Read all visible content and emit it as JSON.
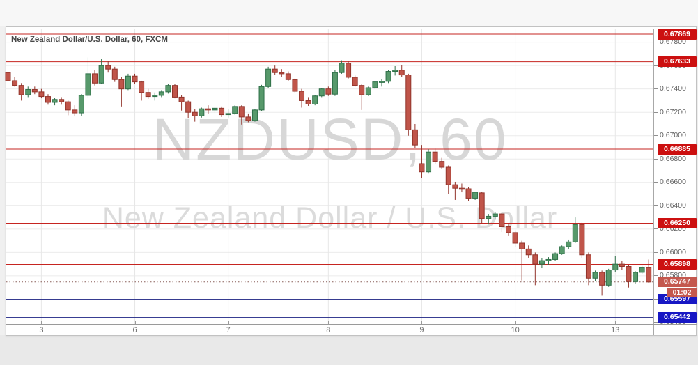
{
  "header": {
    "title": "New Zealand Dollar/U.S. Dollar, 60, FXCM"
  },
  "watermark": {
    "line1": "NZDUSD, 60",
    "line2": "New Zealand Dollar / U.S. Dollar"
  },
  "colors": {
    "up_fill": "#57996b",
    "up_border": "#2f7049",
    "down_fill": "#c0554a",
    "down_border": "#92342b",
    "grid": "#ebebeb",
    "grid_vertical": "#e7e7e7",
    "level_red": "#c62420",
    "level_navy": "#1c2283",
    "badge_red": "#cc1010",
    "badge_navy": "#1717c4",
    "badge_current": "#c4584e",
    "current_line": "#8a5f58",
    "axis_text": "#616161",
    "title_text": "#474747",
    "watermark_text": "#d7d7d7"
  },
  "chart_data": {
    "type": "candlestick",
    "symbol": "NZDUSD",
    "interval": "60",
    "exchange": "FXCM",
    "title": "New Zealand Dollar/U.S. Dollar, 60, FXCM",
    "grid": true,
    "y_range": {
      "top": 0.67917,
      "bottom": 0.65388
    },
    "y_ticks": [
      0.678,
      0.676,
      0.674,
      0.672,
      0.67,
      0.668,
      0.666,
      0.664,
      0.662,
      0.66,
      0.658,
      0.656,
      0.654
    ],
    "x_labels": [
      {
        "text": "3",
        "candle": 5
      },
      {
        "text": "6",
        "candle": 19
      },
      {
        "text": "7",
        "candle": 33
      },
      {
        "text": "8",
        "candle": 48
      },
      {
        "text": "9",
        "candle": 62
      },
      {
        "text": "10",
        "candle": 76
      },
      {
        "text": "13",
        "candle": 91
      }
    ],
    "horizontal_levels": [
      {
        "price": 0.67869,
        "color": "red",
        "label": "0.67869"
      },
      {
        "price": 0.67633,
        "color": "red",
        "label": "0.67633"
      },
      {
        "price": 0.66885,
        "color": "red",
        "label": "0.66885"
      },
      {
        "price": 0.6625,
        "color": "red",
        "label": "0.66250"
      },
      {
        "price": 0.65898,
        "color": "red",
        "label": "0.65898"
      },
      {
        "price": 0.65597,
        "color": "navy",
        "label": "0.65597"
      },
      {
        "price": 0.65442,
        "color": "navy",
        "label": "0.65442"
      }
    ],
    "last_price": {
      "value": 0.65747,
      "label": "0.65747",
      "countdown": "01:02"
    },
    "candles": [
      [
        0.6754,
        0.67585,
        0.6746,
        0.6747
      ],
      [
        0.6747,
        0.675,
        0.6742,
        0.6743
      ],
      [
        0.6743,
        0.6745,
        0.673,
        0.6735
      ],
      [
        0.6735,
        0.6742,
        0.6733,
        0.67395
      ],
      [
        0.67395,
        0.6742,
        0.67355,
        0.67375
      ],
      [
        0.67375,
        0.674,
        0.6732,
        0.67335
      ],
      [
        0.67335,
        0.67355,
        0.67265,
        0.67285
      ],
      [
        0.67285,
        0.67325,
        0.6726,
        0.6731
      ],
      [
        0.6731,
        0.6733,
        0.67265,
        0.6729
      ],
      [
        0.6729,
        0.673,
        0.67175,
        0.6722
      ],
      [
        0.6722,
        0.6726,
        0.67165,
        0.67195
      ],
      [
        0.67195,
        0.67355,
        0.6717,
        0.67345
      ],
      [
        0.67345,
        0.6767,
        0.67325,
        0.6753
      ],
      [
        0.6753,
        0.6756,
        0.6743,
        0.6745
      ],
      [
        0.6745,
        0.6766,
        0.6744,
        0.676
      ],
      [
        0.676,
        0.6764,
        0.6754,
        0.6757
      ],
      [
        0.6757,
        0.6759,
        0.6746,
        0.6748
      ],
      [
        0.6748,
        0.675,
        0.6725,
        0.674
      ],
      [
        0.674,
        0.6753,
        0.6739,
        0.6751
      ],
      [
        0.6751,
        0.6753,
        0.6744,
        0.6746
      ],
      [
        0.6746,
        0.6747,
        0.673,
        0.6737
      ],
      [
        0.6737,
        0.674,
        0.67315,
        0.67335
      ],
      [
        0.67335,
        0.6737,
        0.673,
        0.67345
      ],
      [
        0.67345,
        0.6739,
        0.6733,
        0.67375
      ],
      [
        0.67375,
        0.6744,
        0.6736,
        0.6743
      ],
      [
        0.6743,
        0.67445,
        0.6732,
        0.6733
      ],
      [
        0.6733,
        0.6735,
        0.67215,
        0.6729
      ],
      [
        0.6729,
        0.673,
        0.6715,
        0.672
      ],
      [
        0.672,
        0.6723,
        0.6712,
        0.6717
      ],
      [
        0.6717,
        0.6724,
        0.67155,
        0.6723
      ],
      [
        0.6723,
        0.6726,
        0.6719,
        0.6722
      ],
      [
        0.6722,
        0.6725,
        0.67195,
        0.67235
      ],
      [
        0.67235,
        0.6725,
        0.6716,
        0.6718
      ],
      [
        0.6718,
        0.67225,
        0.67155,
        0.6719
      ],
      [
        0.6719,
        0.6726,
        0.6718,
        0.6725
      ],
      [
        0.6725,
        0.6726,
        0.67095,
        0.6716
      ],
      [
        0.6716,
        0.6719,
        0.67115,
        0.6713
      ],
      [
        0.6713,
        0.6723,
        0.6712,
        0.6722
      ],
      [
        0.6722,
        0.67435,
        0.6721,
        0.6742
      ],
      [
        0.6742,
        0.6759,
        0.6741,
        0.6757
      ],
      [
        0.6757,
        0.676,
        0.6752,
        0.6754
      ],
      [
        0.6754,
        0.6757,
        0.675,
        0.6753
      ],
      [
        0.6753,
        0.6755,
        0.67465,
        0.6748
      ],
      [
        0.6748,
        0.6749,
        0.67365,
        0.6738
      ],
      [
        0.6738,
        0.674,
        0.6724,
        0.673
      ],
      [
        0.673,
        0.6733,
        0.67255,
        0.6727
      ],
      [
        0.6727,
        0.6735,
        0.6726,
        0.6734
      ],
      [
        0.6734,
        0.6741,
        0.6733,
        0.674
      ],
      [
        0.674,
        0.6742,
        0.6734,
        0.67355
      ],
      [
        0.67355,
        0.6756,
        0.6734,
        0.6754
      ],
      [
        0.6754,
        0.67645,
        0.6753,
        0.6762
      ],
      [
        0.6762,
        0.6764,
        0.6749,
        0.675
      ],
      [
        0.675,
        0.67515,
        0.6742,
        0.6743
      ],
      [
        0.6743,
        0.6744,
        0.6722,
        0.6735
      ],
      [
        0.6735,
        0.6742,
        0.6734,
        0.6741
      ],
      [
        0.6741,
        0.6747,
        0.674,
        0.6746
      ],
      [
        0.6746,
        0.67485,
        0.6742,
        0.67465
      ],
      [
        0.67465,
        0.6756,
        0.6745,
        0.6755
      ],
      [
        0.6755,
        0.67595,
        0.67515,
        0.6756
      ],
      [
        0.6756,
        0.67605,
        0.675,
        0.6752
      ],
      [
        0.6752,
        0.6753,
        0.67,
        0.6705
      ],
      [
        0.6705,
        0.671,
        0.66895,
        0.6692
      ],
      [
        0.6676,
        0.6692,
        0.6664,
        0.6669
      ],
      [
        0.6669,
        0.66885,
        0.66675,
        0.6686
      ],
      [
        0.6686,
        0.6689,
        0.66755,
        0.6678
      ],
      [
        0.6678,
        0.6681,
        0.66715,
        0.6673
      ],
      [
        0.6673,
        0.66745,
        0.665,
        0.6658
      ],
      [
        0.6658,
        0.66605,
        0.6645,
        0.6655
      ],
      [
        0.6655,
        0.6659,
        0.66515,
        0.66545
      ],
      [
        0.66545,
        0.6656,
        0.6644,
        0.66465
      ],
      [
        0.66465,
        0.6652,
        0.6645,
        0.66515
      ],
      [
        0.6651,
        0.6652,
        0.6625,
        0.6629
      ],
      [
        0.6629,
        0.6633,
        0.6624,
        0.6631
      ],
      [
        0.6631,
        0.66345,
        0.6628,
        0.6633
      ],
      [
        0.6633,
        0.6634,
        0.66175,
        0.6622
      ],
      [
        0.6622,
        0.6625,
        0.6614,
        0.6617
      ],
      [
        0.6617,
        0.6619,
        0.6605,
        0.6608
      ],
      [
        0.6608,
        0.661,
        0.6576,
        0.6603
      ],
      [
        0.6603,
        0.6606,
        0.65955,
        0.6598
      ],
      [
        0.6598,
        0.66,
        0.6572,
        0.659
      ],
      [
        0.659,
        0.6595,
        0.65865,
        0.6593
      ],
      [
        0.6593,
        0.6596,
        0.6589,
        0.6594
      ],
      [
        0.6594,
        0.66,
        0.65925,
        0.6599
      ],
      [
        0.6599,
        0.6606,
        0.6598,
        0.6605
      ],
      [
        0.6605,
        0.6611,
        0.6603,
        0.6609
      ],
      [
        0.6609,
        0.663,
        0.6608,
        0.6624
      ],
      [
        0.6624,
        0.66255,
        0.6595,
        0.6598
      ],
      [
        0.6598,
        0.66,
        0.6572,
        0.6578
      ],
      [
        0.6578,
        0.65845,
        0.65755,
        0.6583
      ],
      [
        0.6583,
        0.65845,
        0.6563,
        0.6572
      ],
      [
        0.6572,
        0.6586,
        0.65705,
        0.6585
      ],
      [
        0.6585,
        0.6597,
        0.65835,
        0.659
      ],
      [
        0.659,
        0.6593,
        0.6585,
        0.6588
      ],
      [
        0.6588,
        0.65895,
        0.657,
        0.6575
      ],
      [
        0.6575,
        0.6584,
        0.65735,
        0.6583
      ],
      [
        0.6583,
        0.65885,
        0.65815,
        0.6587
      ],
      [
        0.6587,
        0.6594,
        0.6574,
        0.65747
      ]
    ]
  }
}
